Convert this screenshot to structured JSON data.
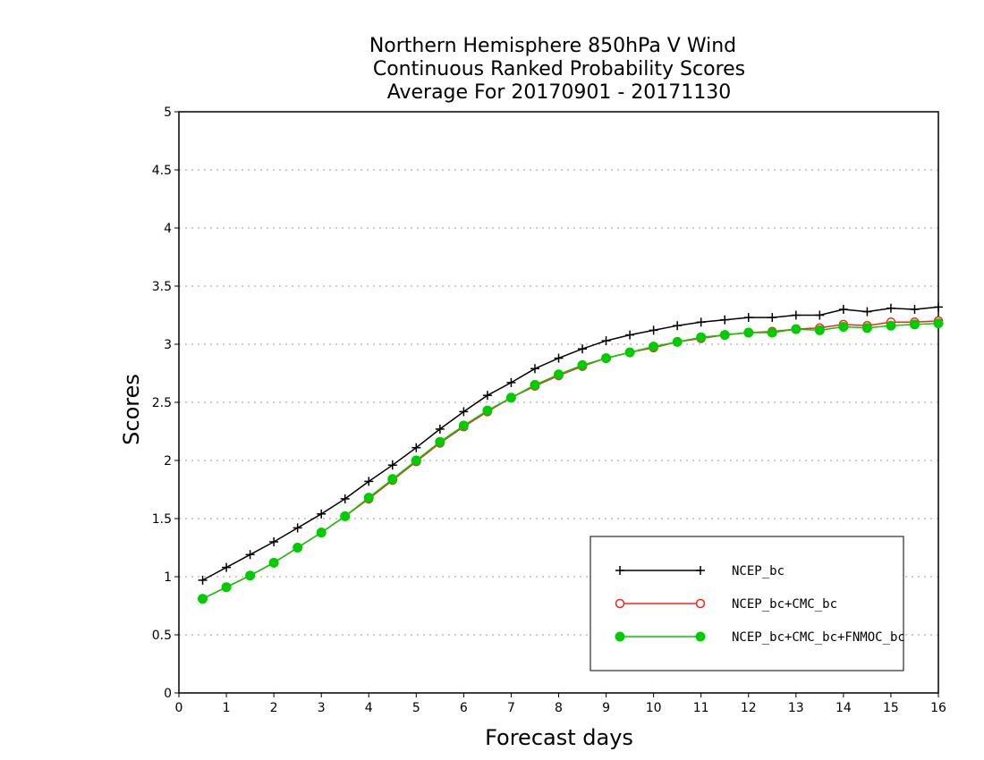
{
  "chart_data": {
    "type": "line",
    "title": [
      "Northern Hemisphere 850hPa V Wind",
      "Continuous Ranked Probability Scores",
      "Average For 20170901 - 20171130"
    ],
    "xlabel": "Forecast days",
    "ylabel": "Scores",
    "xlim": [
      0,
      16
    ],
    "ylim": [
      0,
      5
    ],
    "xticks": [
      "0",
      "1",
      "2",
      "3",
      "4",
      "5",
      "6",
      "7",
      "8",
      "9",
      "10",
      "11",
      "12",
      "13",
      "14",
      "15",
      "16"
    ],
    "yticks": [
      "0",
      "0.5",
      "1",
      "1.5",
      "2",
      "2.5",
      "3",
      "3.5",
      "4",
      "4.5",
      "5"
    ],
    "grid": "horizontal dotted",
    "legend_position": "bottom-right",
    "x": [
      0.5,
      1,
      1.5,
      2,
      2.5,
      3,
      3.5,
      4,
      4.5,
      5,
      5.5,
      6,
      6.5,
      7,
      7.5,
      8,
      8.5,
      9,
      9.5,
      10,
      10.5,
      11,
      11.5,
      12,
      12.5,
      13,
      13.5,
      14,
      14.5,
      15,
      15.5,
      16
    ],
    "series": [
      {
        "name": "NCEP_bc",
        "color": "#000000",
        "marker": "plus",
        "values": [
          0.97,
          1.08,
          1.19,
          1.3,
          1.42,
          1.54,
          1.67,
          1.82,
          1.96,
          2.11,
          2.27,
          2.42,
          2.56,
          2.67,
          2.79,
          2.88,
          2.96,
          3.03,
          3.08,
          3.12,
          3.16,
          3.19,
          3.21,
          3.23,
          3.23,
          3.25,
          3.25,
          3.3,
          3.28,
          3.31,
          3.3,
          3.32
        ]
      },
      {
        "name": "NCEP_bc+CMC_bc",
        "color": "#ff2020",
        "marker": "open-circle",
        "values": [
          0.81,
          0.91,
          1.01,
          1.12,
          1.25,
          1.38,
          1.52,
          1.67,
          1.83,
          1.99,
          2.15,
          2.29,
          2.42,
          2.54,
          2.64,
          2.73,
          2.81,
          2.88,
          2.93,
          2.97,
          3.02,
          3.05,
          3.08,
          3.1,
          3.11,
          3.13,
          3.14,
          3.17,
          3.16,
          3.19,
          3.19,
          3.2
        ]
      },
      {
        "name": "NCEP_bc+CMC_bc+FNMOC_bc",
        "color": "#00cc00",
        "marker": "filled-circle",
        "values": [
          0.81,
          0.91,
          1.01,
          1.12,
          1.25,
          1.38,
          1.52,
          1.68,
          1.84,
          2.0,
          2.16,
          2.3,
          2.43,
          2.54,
          2.65,
          2.74,
          2.82,
          2.88,
          2.93,
          2.98,
          3.02,
          3.06,
          3.08,
          3.1,
          3.1,
          3.13,
          3.12,
          3.15,
          3.14,
          3.16,
          3.17,
          3.18
        ]
      }
    ]
  }
}
